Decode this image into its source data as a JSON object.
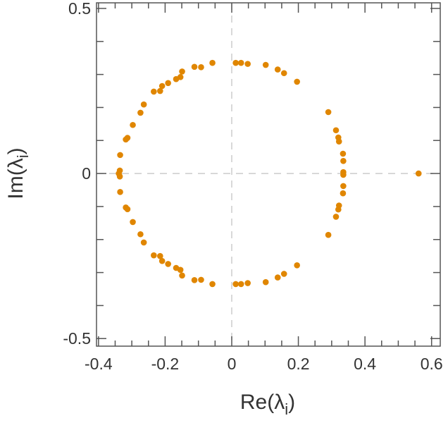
{
  "chart_data": {
    "type": "scatter",
    "title": "",
    "xlabel": {
      "pre": "Re(λ",
      "sub": "i",
      "post": ")"
    },
    "ylabel": {
      "pre": "Im(λ",
      "sub": "i",
      "post": ")"
    },
    "xlim": [
      -0.406,
      0.626
    ],
    "ylim": [
      -0.523,
      0.517
    ],
    "xticks": [
      -0.4,
      -0.2,
      0,
      0.2,
      0.4,
      0.6
    ],
    "xtick_labels": [
      "-0.4",
      "-0.2",
      "0",
      "0.2",
      "0.4",
      "0.6"
    ],
    "yticks": [
      -0.5,
      0,
      0.5
    ],
    "ytick_labels": [
      "-0.5",
      "0",
      "0.5"
    ],
    "x_minor_step": 0.05,
    "y_minor_step": 0.1,
    "grid": false,
    "reference_lines": [
      "x=0",
      "y=0"
    ],
    "marker_color": "#e08600",
    "reference_line_color": "#cccccc",
    "symmetric_about_real_axis": true,
    "points_upper_half": [
      [
        -0.058,
        0.335
      ],
      [
        -0.092,
        0.322
      ],
      [
        -0.112,
        0.323
      ],
      [
        -0.149,
        0.309
      ],
      [
        -0.154,
        0.292
      ],
      [
        -0.167,
        0.286
      ],
      [
        -0.191,
        0.274
      ],
      [
        -0.209,
        0.265
      ],
      [
        -0.215,
        0.25
      ],
      [
        -0.234,
        0.248
      ],
      [
        -0.264,
        0.209
      ],
      [
        -0.274,
        0.184
      ],
      [
        -0.297,
        0.147
      ],
      [
        -0.313,
        0.108
      ],
      [
        -0.318,
        0.103
      ],
      [
        -0.335,
        0.056
      ],
      [
        -0.336,
        0.009
      ],
      [
        0.012,
        0.335
      ],
      [
        0.028,
        0.335
      ],
      [
        0.048,
        0.332
      ],
      [
        0.102,
        0.329
      ],
      [
        0.138,
        0.315
      ],
      [
        0.157,
        0.304
      ],
      [
        0.196,
        0.278
      ],
      [
        0.29,
        0.186
      ],
      [
        0.313,
        0.131
      ],
      [
        0.32,
        0.109
      ],
      [
        0.322,
        0.097
      ],
      [
        0.334,
        0.06
      ],
      [
        0.335,
        0.038
      ],
      [
        0.335,
        0.004
      ]
    ],
    "points_real": [
      [
        -0.339,
        0.0
      ],
      [
        0.561,
        0.0
      ]
    ]
  }
}
